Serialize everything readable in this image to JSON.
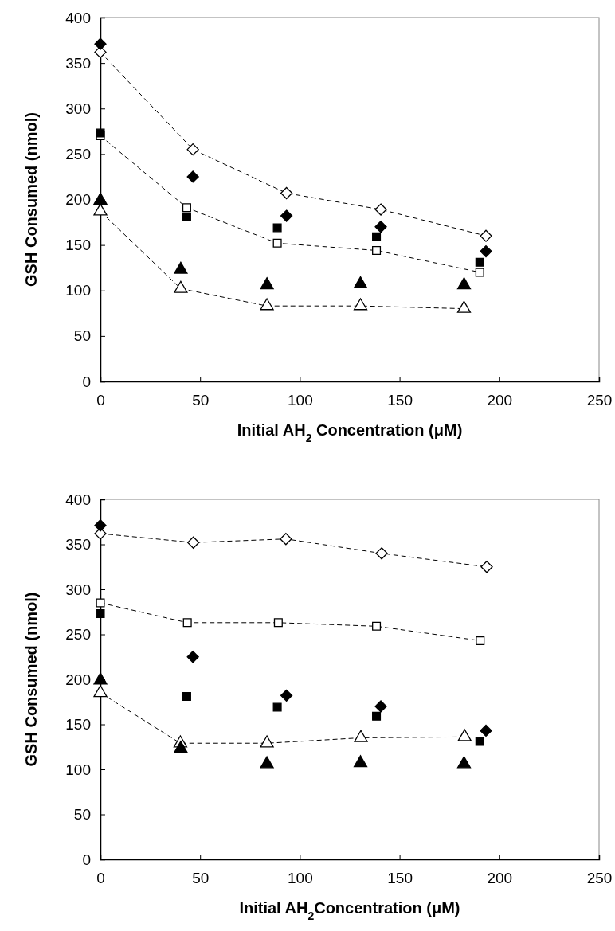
{
  "chart_data": [
    {
      "type": "scatter",
      "xlabel": "Initial AH$_{2}$ Concentration (μM)",
      "ylabel": "GSH Consumed (nmol)",
      "xlim": [
        0,
        250
      ],
      "xticks": [
        0,
        50,
        100,
        150,
        200,
        250
      ],
      "ylim": [
        0,
        400
      ],
      "yticks": [
        0,
        50,
        100,
        150,
        200,
        250,
        300,
        350,
        400
      ],
      "grid": false,
      "series": [
        {
          "type": "scatter",
          "marker": "diamond",
          "color": "#000000",
          "x": [
            0,
            46.4,
            93.3,
            140.6,
            193.3
          ],
          "values": [
            371,
            225,
            182,
            170,
            143
          ]
        },
        {
          "type": "line",
          "marker": "diamond",
          "line_style": "dashed",
          "color": "#000000",
          "x": [
            0,
            46.4,
            93.3,
            140.6,
            193.3
          ],
          "values": [
            362,
            255,
            207,
            189,
            160
          ]
        },
        {
          "type": "scatter",
          "marker": "square",
          "color": "#000000",
          "x": [
            0,
            43.3,
            88.7,
            138.4,
            190.2
          ],
          "values": [
            273,
            181,
            169,
            159,
            131
          ]
        },
        {
          "type": "line",
          "marker": "square",
          "line_style": "dashed",
          "color": "#000000",
          "x": [
            0,
            43.3,
            88.7,
            138.4,
            190.2
          ],
          "values": [
            270,
            191,
            152,
            144,
            120
          ]
        },
        {
          "type": "scatter",
          "marker": "triangle",
          "color": "#000000",
          "x": [
            0,
            40.3,
            83.5,
            130.4,
            182.3
          ],
          "values": [
            199,
            123,
            106,
            107,
            106
          ]
        },
        {
          "type": "line",
          "marker": "triangle",
          "line_style": "dashed",
          "color": "#000000",
          "x": [
            0,
            40.3,
            83.5,
            130.4,
            182.3
          ],
          "values": [
            187,
            102,
            83,
            83,
            80
          ]
        }
      ]
    },
    {
      "type": "scatter",
      "xlabel": "Initial AH$_{2}$Concentration (μM)",
      "ylabel": "GSH Consumed (nmol)",
      "xlim": [
        0,
        250
      ],
      "xticks": [
        0,
        50,
        100,
        150,
        200,
        250
      ],
      "ylim": [
        0,
        400
      ],
      "yticks": [
        0,
        50,
        100,
        150,
        200,
        250,
        300,
        350,
        400
      ],
      "grid": false,
      "series": [
        {
          "type": "scatter",
          "marker": "diamond",
          "color": "#000000",
          "x": [
            0,
            46.4,
            93.3,
            140.6,
            193.3
          ],
          "values": [
            371,
            225,
            182,
            170,
            143
          ]
        },
        {
          "type": "line",
          "marker": "diamond",
          "line_style": "dashed",
          "color": "#000000",
          "x": [
            0,
            46.6,
            93,
            141,
            193.7
          ],
          "values": [
            362,
            352,
            356,
            340,
            325
          ]
        },
        {
          "type": "scatter",
          "marker": "square",
          "color": "#000000",
          "x": [
            0,
            43.3,
            88.7,
            138.4,
            190.2
          ],
          "values": [
            273,
            181,
            169,
            159,
            131
          ]
        },
        {
          "type": "line",
          "marker": "square",
          "line_style": "dashed",
          "color": "#000000",
          "x": [
            0,
            43.6,
            89.2,
            138.4,
            190.4
          ],
          "values": [
            285,
            263,
            263,
            259,
            243
          ]
        },
        {
          "type": "scatter",
          "marker": "triangle",
          "color": "#000000",
          "x": [
            0,
            40.3,
            83.5,
            130.4,
            182.3
          ],
          "values": [
            199,
            123,
            106,
            107,
            106
          ]
        },
        {
          "type": "line",
          "marker": "triangle",
          "line_style": "dashed",
          "color": "#000000",
          "x": [
            0,
            40.1,
            83.5,
            130.6,
            182.6
          ],
          "values": [
            185,
            129,
            129,
            135,
            136
          ]
        }
      ]
    }
  ]
}
